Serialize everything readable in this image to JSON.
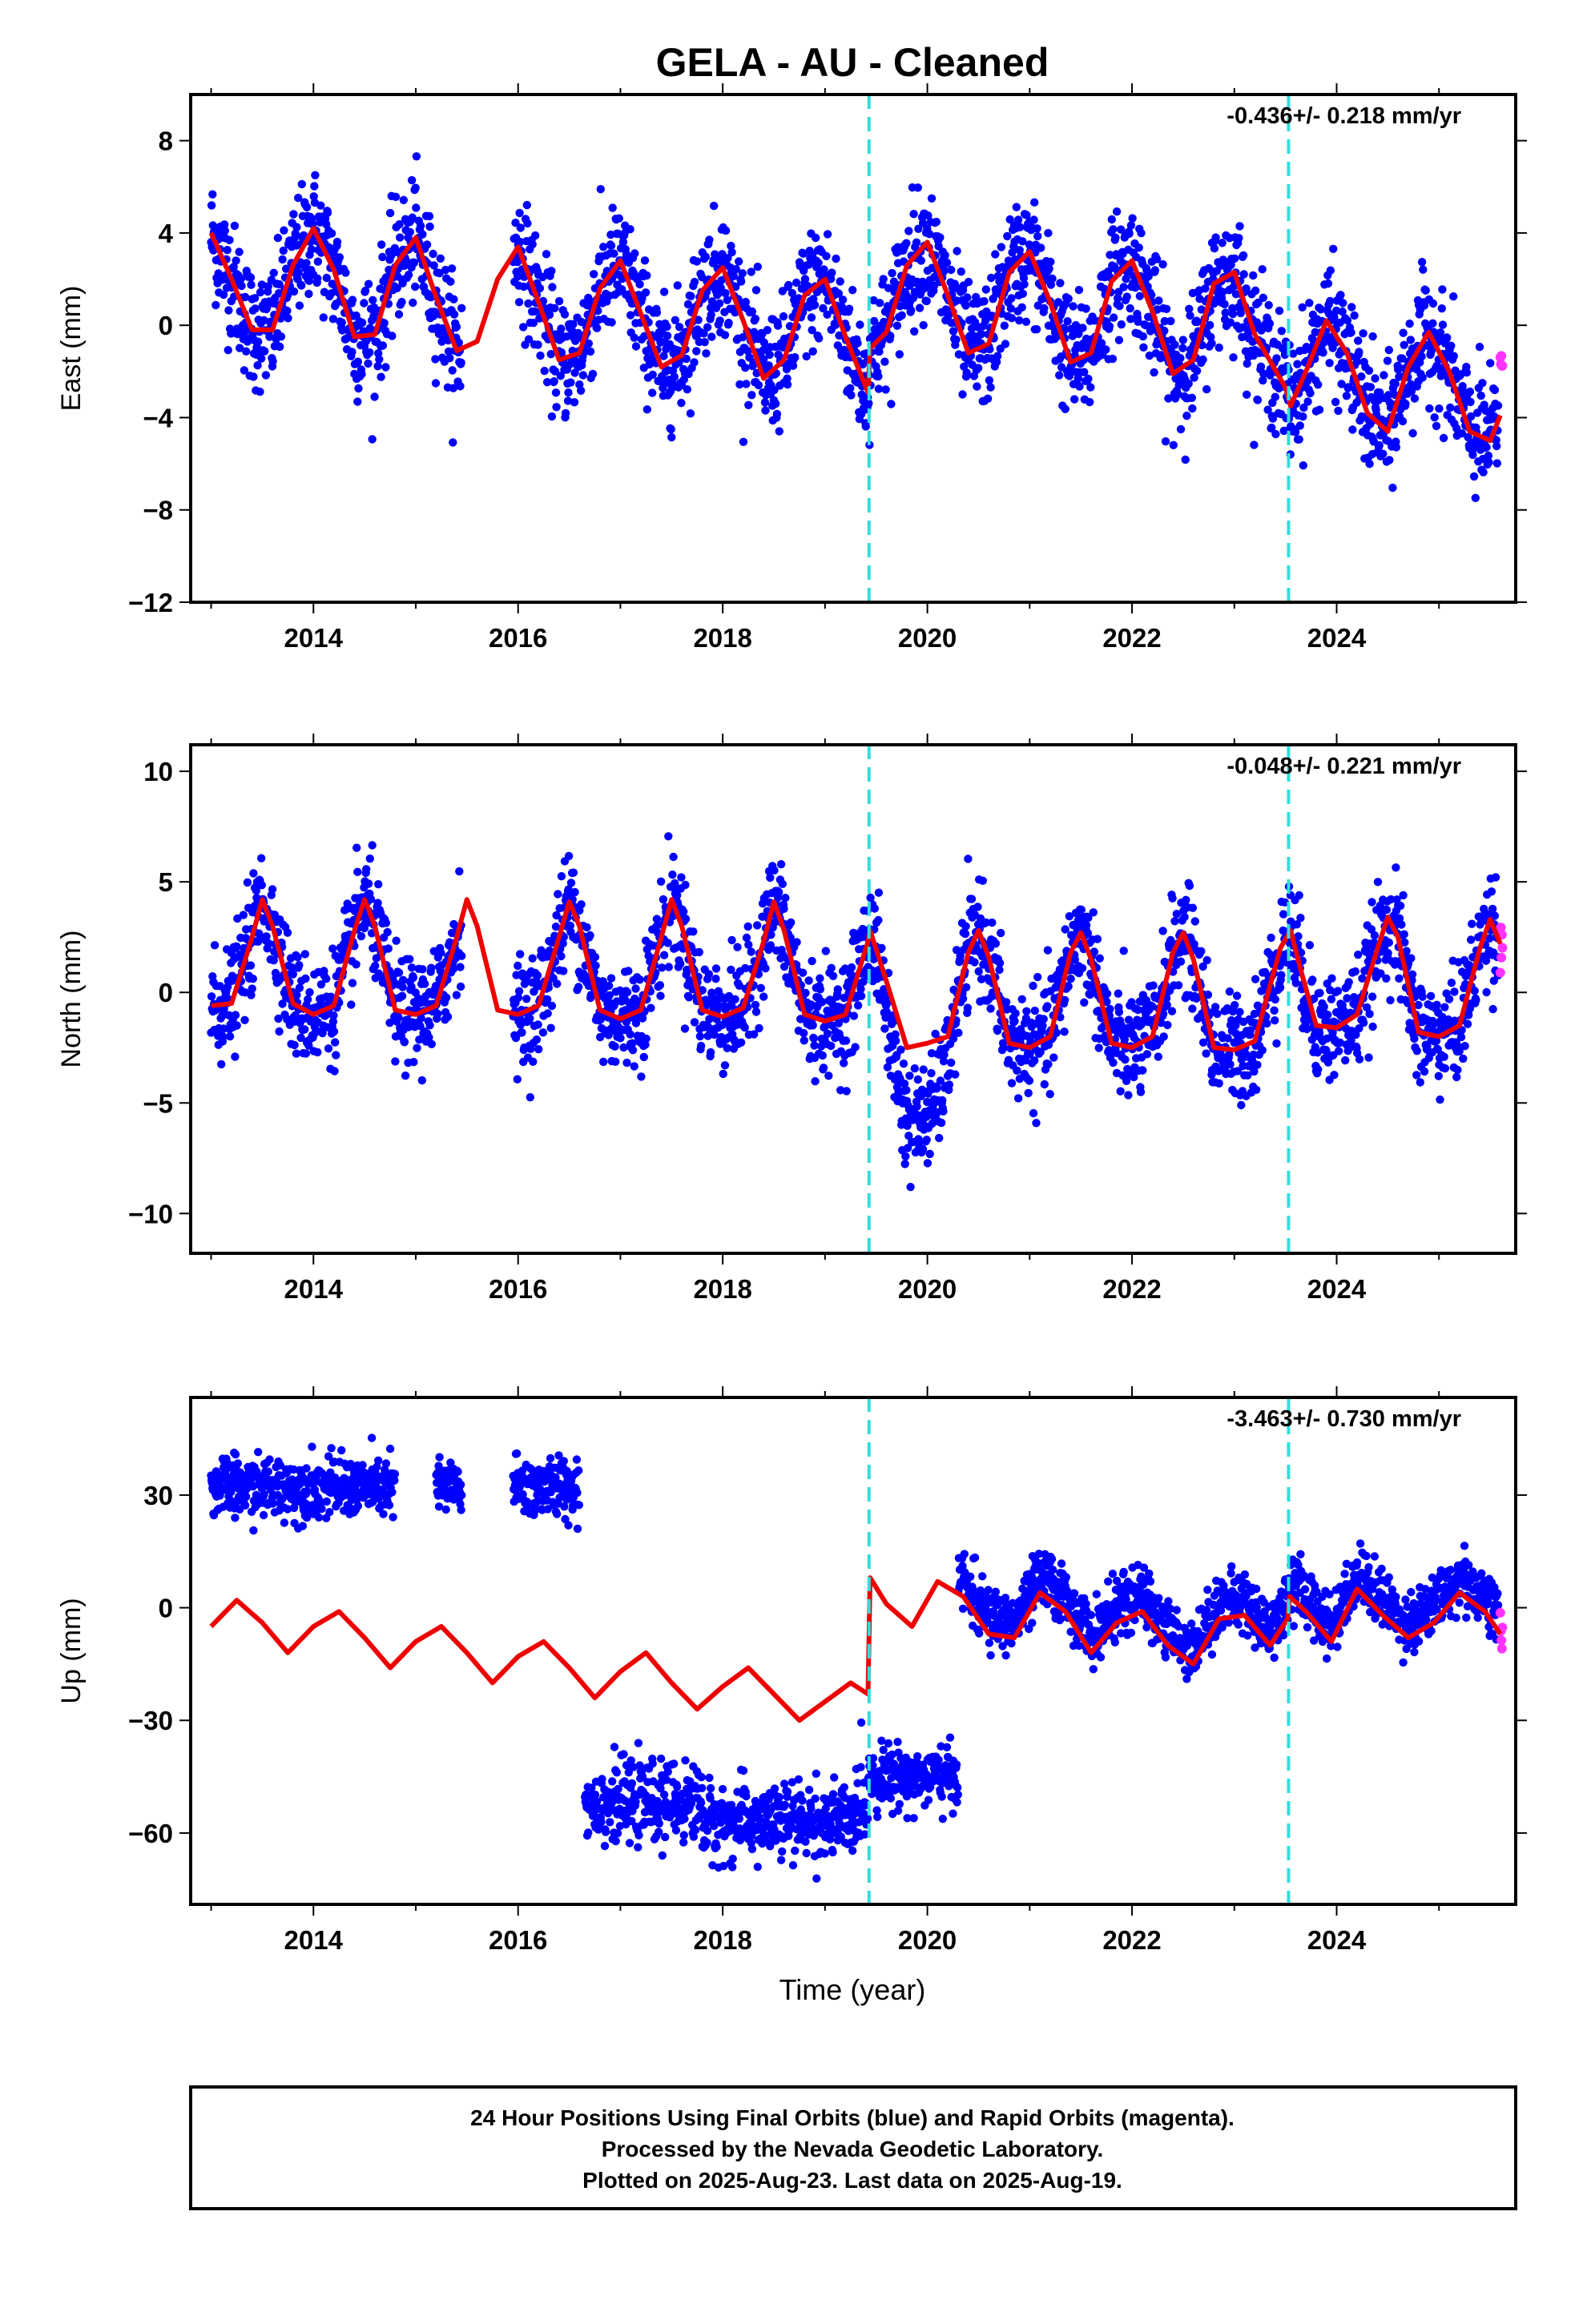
{
  "title": "GELA  - AU - Cleaned",
  "colors": {
    "final_orbits": "#0000ff",
    "rapid_orbits": "#ff33ff",
    "model": "#ee0000",
    "equipment_change": "#33dddd"
  },
  "chart_data": [
    {
      "type": "scatter",
      "name": "east",
      "ylabel": "East (mm)",
      "rate_label": "-0.436+/- 0.218 mm/yr",
      "xlim": [
        2012.8,
        2025.75
      ],
      "ylim": [
        -12,
        10
      ],
      "xticks": [
        2014,
        2016,
        2018,
        2020,
        2022,
        2024
      ],
      "yticks": [
        8,
        4,
        0,
        -4,
        -8,
        -12
      ],
      "ytick_labels": [
        "8",
        "4",
        "0",
        "−4",
        "−8",
        "−12"
      ],
      "vlines": [
        2019.43,
        2023.53
      ],
      "model": {
        "x": [
          2013.0,
          2013.2,
          2013.4,
          2013.6,
          2013.8,
          2014.0,
          2014.2,
          2014.4,
          2014.6,
          2014.8,
          2015.0,
          2015.2,
          2015.4,
          2015.6,
          2015.8,
          2016.0,
          2016.2,
          2016.4,
          2016.6,
          2016.8,
          2017.0,
          2017.2,
          2017.4,
          2017.6,
          2017.8,
          2018.0,
          2018.2,
          2018.4,
          2018.6,
          2018.8,
          2019.0,
          2019.2,
          2019.42,
          2019.44,
          2019.6,
          2019.8,
          2020.0,
          2020.2,
          2020.4,
          2020.6,
          2020.8,
          2021.0,
          2021.2,
          2021.4,
          2021.6,
          2021.8,
          2022.0,
          2022.2,
          2022.4,
          2022.6,
          2022.8,
          2023.0,
          2023.2,
          2023.5,
          2023.55,
          2023.7,
          2023.9,
          2024.1,
          2024.3,
          2024.5,
          2024.7,
          2024.9,
          2025.1,
          2025.3,
          2025.5,
          2025.6
        ],
        "y": [
          4.0,
          2.0,
          -0.2,
          -0.2,
          2.6,
          4.2,
          2.4,
          -0.5,
          -0.4,
          2.6,
          3.8,
          1.2,
          -1.1,
          -0.7,
          2.0,
          3.4,
          1.0,
          -1.5,
          -1.2,
          1.6,
          2.8,
          0.5,
          -1.8,
          -1.3,
          1.5,
          2.5,
          0.2,
          -2.3,
          -1.5,
          1.3,
          2.0,
          -0.5,
          -2.9,
          -1.0,
          -0.3,
          2.6,
          3.6,
          1.3,
          -1.2,
          -0.8,
          2.3,
          3.2,
          1.0,
          -1.6,
          -1.2,
          1.9,
          2.8,
          0.6,
          -2.1,
          -1.5,
          1.8,
          2.3,
          -0.4,
          -2.7,
          -3.5,
          -2.0,
          0.2,
          -1.2,
          -3.8,
          -4.6,
          -1.8,
          -0.3,
          -2.0,
          -4.6,
          -5.0,
          -3.9
        ]
      }
    },
    {
      "type": "scatter",
      "name": "north",
      "ylabel": "North (mm)",
      "rate_label": "-0.048+/- 0.221 mm/yr",
      "xlim": [
        2012.8,
        2025.75
      ],
      "ylim": [
        -11.8,
        11.2
      ],
      "xticks": [
        2014,
        2016,
        2018,
        2020,
        2022,
        2024
      ],
      "yticks": [
        10,
        5,
        0,
        -5,
        -10
      ],
      "ytick_labels": [
        "10",
        "5",
        "0",
        "−5",
        "−10"
      ],
      "vlines": [
        2019.43,
        2023.53
      ],
      "model": {
        "x": [
          2013.0,
          2013.2,
          2013.4,
          2013.5,
          2013.6,
          2013.8,
          2014.0,
          2014.2,
          2014.4,
          2014.5,
          2014.6,
          2014.8,
          2015.0,
          2015.2,
          2015.4,
          2015.5,
          2015.6,
          2015.8,
          2016.0,
          2016.2,
          2016.4,
          2016.5,
          2016.6,
          2016.8,
          2017.0,
          2017.2,
          2017.4,
          2017.5,
          2017.6,
          2017.8,
          2018.0,
          2018.2,
          2018.4,
          2018.5,
          2018.6,
          2018.8,
          2019.0,
          2019.2,
          2019.42,
          2019.44,
          2019.6,
          2019.8,
          2020.0,
          2020.2,
          2020.4,
          2020.5,
          2020.6,
          2020.8,
          2021.0,
          2021.2,
          2021.4,
          2021.5,
          2021.6,
          2021.8,
          2022.0,
          2022.2,
          2022.4,
          2022.5,
          2022.6,
          2022.8,
          2023.0,
          2023.2,
          2023.45,
          2023.55,
          2023.65,
          2023.8,
          2024.0,
          2024.2,
          2024.4,
          2024.5,
          2024.6,
          2024.8,
          2025.0,
          2025.2,
          2025.4,
          2025.5,
          2025.6
        ],
        "y": [
          -0.6,
          -0.5,
          2.5,
          4.2,
          3.0,
          -0.5,
          -1.0,
          -0.6,
          2.8,
          4.2,
          3.0,
          -0.8,
          -1.0,
          -0.6,
          2.5,
          4.2,
          3.0,
          -0.8,
          -1.0,
          -0.6,
          2.5,
          4.1,
          3.0,
          -0.8,
          -1.2,
          -0.8,
          2.5,
          4.2,
          3.0,
          -0.8,
          -1.1,
          -0.7,
          2.3,
          4.1,
          2.8,
          -1.0,
          -1.3,
          -1.0,
          2.3,
          2.8,
          0.5,
          -2.5,
          -2.3,
          -2.0,
          1.8,
          2.8,
          1.6,
          -2.3,
          -2.5,
          -2.0,
          1.8,
          2.7,
          1.5,
          -2.3,
          -2.5,
          -2.0,
          1.8,
          2.7,
          1.5,
          -2.5,
          -2.6,
          -2.2,
          2.0,
          2.8,
          1.0,
          -1.5,
          -1.6,
          -1.0,
          2.0,
          3.4,
          2.5,
          -1.8,
          -2.0,
          -1.5,
          2.0,
          3.3,
          2.2
        ]
      }
    },
    {
      "type": "scatter",
      "name": "up",
      "ylabel": "Up (mm)",
      "xlabel": "Time (year)",
      "rate_label": "-3.463+/- 0.730 mm/yr",
      "xlim": [
        2012.8,
        2025.75
      ],
      "ylim": [
        -79,
        56
      ],
      "xticks": [
        2014,
        2016,
        2018,
        2020,
        2022,
        2024
      ],
      "yticks": [
        30,
        0,
        -30,
        -60
      ],
      "ytick_labels": [
        "30",
        "0",
        "−30",
        "−60"
      ],
      "vlines": [
        2019.43,
        2023.53
      ],
      "model": {
        "x": [
          2013.0,
          2013.25,
          2013.5,
          2013.75,
          2014.0,
          2014.25,
          2014.5,
          2014.75,
          2015.0,
          2015.25,
          2015.5,
          2015.75,
          2016.0,
          2016.25,
          2016.5,
          2016.75,
          2017.0,
          2017.25,
          2017.5,
          2017.75,
          2018.0,
          2018.25,
          2018.5,
          2018.75,
          2019.0,
          2019.25,
          2019.42,
          2019.44,
          2019.6,
          2019.85,
          2020.1,
          2020.35,
          2020.6,
          2020.85,
          2021.1,
          2021.35,
          2021.6,
          2021.85,
          2022.1,
          2022.35,
          2022.6,
          2022.85,
          2023.1,
          2023.35,
          2023.52,
          2023.54,
          2023.7,
          2023.95,
          2024.2,
          2024.45,
          2024.7,
          2024.95,
          2025.2,
          2025.45,
          2025.6
        ],
        "y": [
          -5,
          2,
          -4,
          -12,
          -5,
          -1,
          -8,
          -16,
          -9,
          -5,
          -12,
          -20,
          -13,
          -9,
          -16,
          -24,
          -17,
          -12,
          -20,
          -27,
          -21,
          -16,
          -23,
          -30,
          -25,
          -20,
          -23,
          8,
          1,
          -5,
          7,
          3,
          -7,
          -8,
          4,
          -1,
          -12,
          -4,
          -1,
          -10,
          -15,
          -3,
          -2,
          -10,
          -3,
          3,
          -1,
          -9,
          5,
          -2,
          -8,
          -4,
          4,
          -1,
          -7
        ]
      }
    }
  ],
  "footer": {
    "line1": "24 Hour Positions Using Final Orbits (blue) and Rapid Orbits (magenta).",
    "line2": "Processed by the Nevada Geodetic Laboratory.",
    "line3": "Plotted on 2025-Aug-23. Last data on 2025-Aug-19."
  }
}
